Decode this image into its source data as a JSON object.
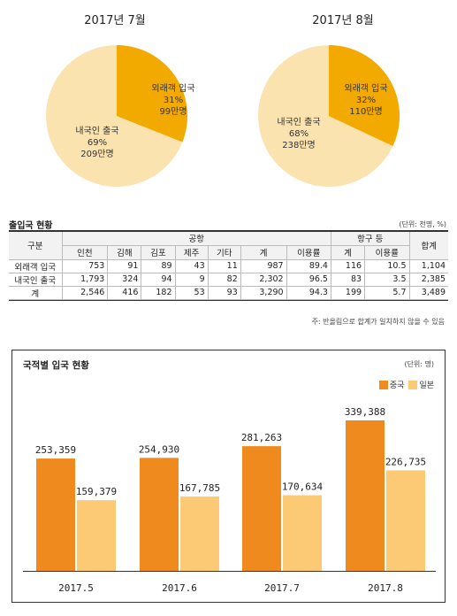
{
  "pie_charts": [
    {
      "title": "2017년 7월",
      "slices": [
        {
          "name": "외래객 입국",
          "percent": 31,
          "count": "99만명",
          "pct_label": "31%",
          "color": "#f2a900"
        },
        {
          "name": "내국인 출국",
          "percent": 69,
          "count": "209만명",
          "pct_label": "69%",
          "color": "#fbe3b0"
        }
      ]
    },
    {
      "title": "2017년 8월",
      "slices": [
        {
          "name": "외래객 입국",
          "percent": 32,
          "count": "110만명",
          "pct_label": "32%",
          "color": "#f2a900"
        },
        {
          "name": "내국인 출국",
          "percent": 68,
          "count": "238만명",
          "pct_label": "68%",
          "color": "#fbe3b0"
        }
      ]
    }
  ],
  "table": {
    "title": "출입국 현황",
    "unit": "(단위: 천명, %)",
    "header_category": "구분",
    "group_airport": "공항",
    "group_port": "항구 등",
    "header_total": "합계",
    "airport_columns": [
      "인천",
      "김해",
      "김포",
      "제주",
      "기타",
      "계",
      "이용률"
    ],
    "port_columns": [
      "계",
      "이용률"
    ],
    "rows": [
      {
        "label": "외래객 입국",
        "cells": [
          "753",
          "91",
          "89",
          "43",
          "11",
          "987",
          "89.4",
          "116",
          "10.5",
          "1,104"
        ]
      },
      {
        "label": "내국인 출국",
        "cells": [
          "1,793",
          "324",
          "94",
          "9",
          "82",
          "2,302",
          "96.5",
          "83",
          "3.5",
          "2,385"
        ]
      },
      {
        "label": "계",
        "cells": [
          "2,546",
          "416",
          "182",
          "53",
          "93",
          "3,290",
          "94.3",
          "199",
          "5.7",
          "3,489"
        ]
      }
    ],
    "note": "주: 반올림으로 합계가 일치하지 않을 수 있음"
  },
  "chart_data": [
    {
      "type": "pie",
      "title": "2017년 7월",
      "labels": [
        "외래객 입국",
        "내국인 출국"
      ],
      "values": [
        31,
        69
      ],
      "counts": [
        "99만명",
        "209만명"
      ]
    },
    {
      "type": "pie",
      "title": "2017년 8월",
      "labels": [
        "외래객 입국",
        "내국인 출국"
      ],
      "values": [
        32,
        68
      ],
      "counts": [
        "110만명",
        "238만명"
      ]
    },
    {
      "type": "bar",
      "title": "국적별 입국 현황",
      "unit": "(단위: 명)",
      "categories": [
        "2017.5",
        "2017.6",
        "2017.7",
        "2017.8"
      ],
      "series": [
        {
          "name": "중국",
          "values": [
            253359,
            254930,
            281263,
            339388
          ],
          "labels": [
            "253,359",
            "254,930",
            "281,263",
            "339,388"
          ],
          "color": "#ef8a1e"
        },
        {
          "name": "일본",
          "values": [
            159379,
            167785,
            170634,
            226735
          ],
          "labels": [
            "159,379",
            "167,785",
            "170,634",
            "226,735"
          ],
          "color": "#fcc974"
        }
      ],
      "legend_position": "top-right",
      "grid": false
    }
  ]
}
